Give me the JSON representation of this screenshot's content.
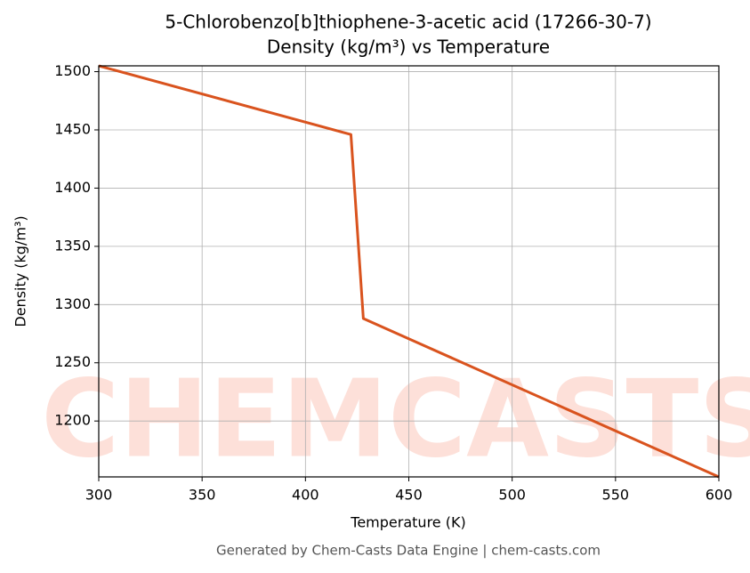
{
  "chart_data": {
    "type": "line",
    "title": "5-Chlorobenzo[b]thiophene-3-acetic acid (17266-30-7)",
    "subtitle": "Density (kg/m³) vs Temperature",
    "xlabel": "Temperature (K)",
    "ylabel": "Density (kg/m³)",
    "watermark": "CHEMCASTS",
    "footer": "Generated by Chem-Casts Data Engine | chem-casts.com",
    "x": [
      300,
      422,
      428,
      600
    ],
    "series": [
      {
        "name": "Density",
        "color": "#d9531e",
        "values": [
          1505,
          1446,
          1288,
          1152
        ]
      }
    ],
    "xlim": [
      300,
      600
    ],
    "xticks": [
      300,
      350,
      400,
      450,
      500,
      550,
      600
    ],
    "ylim": [
      1152,
      1505
    ],
    "yticks": [
      1200,
      1250,
      1300,
      1350,
      1400,
      1450,
      1500
    ],
    "grid": true
  }
}
